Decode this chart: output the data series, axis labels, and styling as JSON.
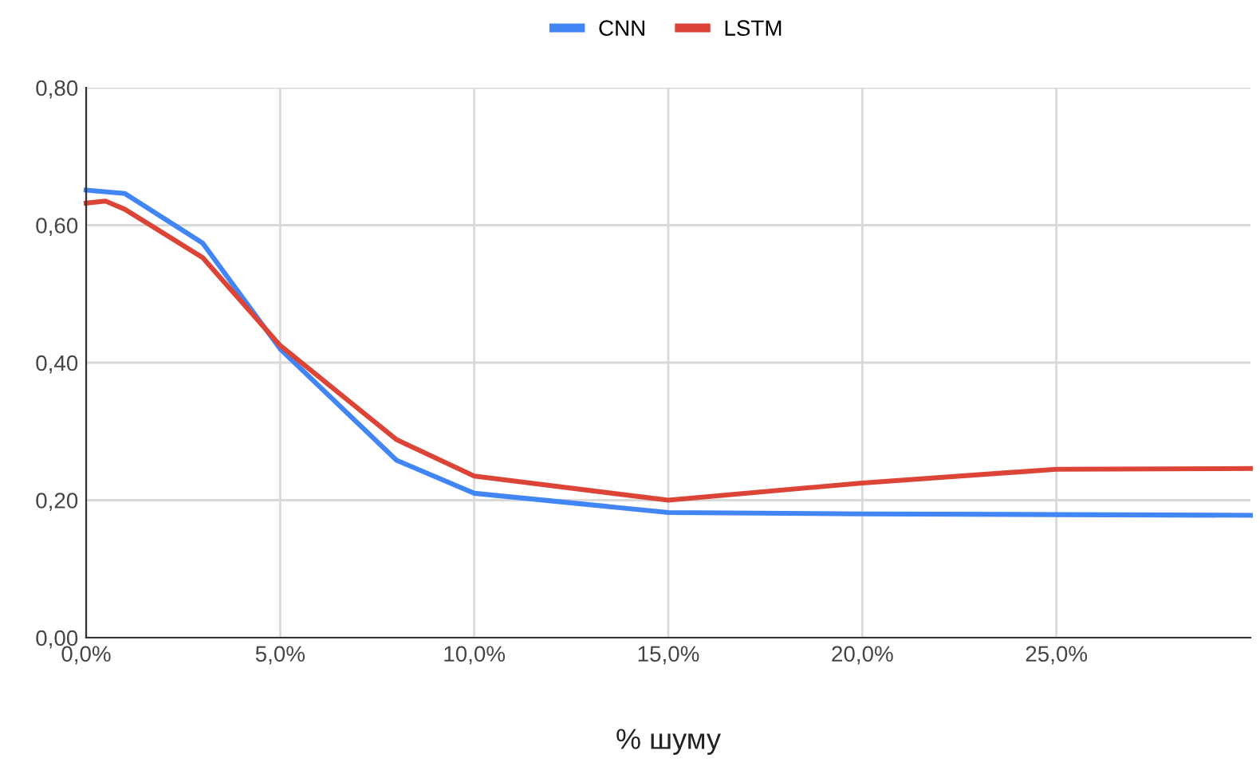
{
  "chart_data": {
    "type": "line",
    "xlabel": "% шуму",
    "x": [
      0,
      1,
      3,
      5,
      8,
      10,
      15,
      20,
      25,
      30
    ],
    "series": [
      {
        "name": "CNN",
        "color": "#4285f4",
        "values": [
          0.651,
          0.646,
          0.574,
          0.42,
          0.258,
          0.21,
          0.182,
          0.18,
          0.179,
          0.178
        ]
      },
      {
        "name": "LSTM",
        "color": "#db4437",
        "x": [
          0,
          0.5,
          1,
          3,
          5,
          8,
          10,
          15,
          20,
          25,
          30
        ],
        "values": [
          0.632,
          0.635,
          0.623,
          0.553,
          0.425,
          0.288,
          0.235,
          0.2,
          0.225,
          0.245,
          0.246
        ]
      }
    ],
    "xlim": [
      0,
      30
    ],
    "ylim": [
      0,
      0.8
    ],
    "xticks": [
      {
        "value": 0,
        "label": "0,0%"
      },
      {
        "value": 5,
        "label": "5,0%"
      },
      {
        "value": 10,
        "label": "10,0%"
      },
      {
        "value": 15,
        "label": "15,0%"
      },
      {
        "value": 20,
        "label": "20,0%"
      },
      {
        "value": 25,
        "label": "25,0%"
      }
    ],
    "yticks": [
      {
        "value": 0,
        "label": "0,00"
      },
      {
        "value": 0.2,
        "label": "0,20"
      },
      {
        "value": 0.4,
        "label": "0,40"
      },
      {
        "value": 0.6,
        "label": "0,60"
      },
      {
        "value": 0.8,
        "label": "0,80"
      }
    ],
    "grid": true,
    "legend": "top",
    "marker": "none",
    "line_style": "solid"
  }
}
